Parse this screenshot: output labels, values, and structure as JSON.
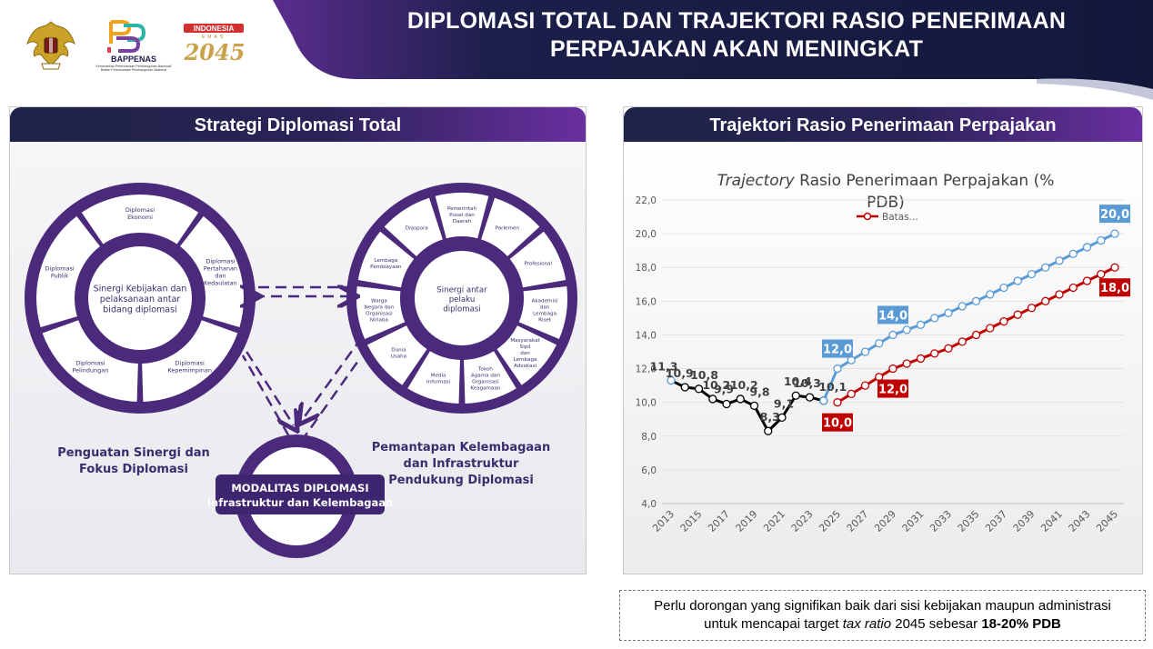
{
  "header": {
    "title_line1": "DIPLOMASI TOTAL DAN TRAJEKTORI RASIO PENERIMAAN",
    "title_line2": "PERPAJAKAN AKAN MENINGKAT",
    "bappenas_label": "BAPPENAS",
    "bappenas_sub1": "Kementerian Perencanaan Pembangunan Nasional/",
    "bappenas_sub2": "Badan Perencanaan Pembangunan Nasional",
    "indonesia_label": "INDONESIA",
    "emas_label": "EMAS",
    "year_label": "2045",
    "colors": {
      "navy": "#13183b",
      "purple": "#5a2a8f"
    }
  },
  "left_panel": {
    "title": "Strategi Diplomasi Total",
    "left_circle": {
      "center": [
        "Sinergi Kebijakan dan",
        "pelaksanaan antar",
        "bidang diplomasi"
      ],
      "segments": [
        [
          "Diplomasi",
          "Ekonomi"
        ],
        [
          "Diplomasi",
          "Pertahanan",
          "dan",
          "Kedaulatan"
        ],
        [
          "Diplomasi",
          "Kepemimpinan"
        ],
        [
          "Diplomasi",
          "Pelindungan"
        ],
        [
          "Diplomasi",
          "Publik"
        ]
      ],
      "caption": [
        "Penguatan Sinergi dan",
        "Fokus Diplomasi"
      ]
    },
    "right_circle": {
      "center": [
        "Sinergi antar",
        "pelaku",
        "diplomasi"
      ],
      "segments": [
        [
          "Pemerintah",
          "Pusat dan",
          "Daerah"
        ],
        [
          "Parlemen"
        ],
        [
          "Profesional"
        ],
        [
          "Akademisi",
          "dan",
          "Lembaga",
          "Riset"
        ],
        [
          "Masyarakat",
          "Sipil",
          "dan",
          "Lembaga",
          "Advokasi"
        ],
        [
          "Tokoh",
          "Agama dan",
          "Organisasi",
          "Keagamaan"
        ],
        [
          "Media",
          "Informasi"
        ],
        [
          "Dunia",
          "Usaha"
        ],
        [
          "Warga",
          "Negara dan",
          "Organisasi",
          "Nirlaba"
        ],
        [
          "Lembaga",
          "Pembiayaan"
        ],
        [
          "Diaspora"
        ]
      ],
      "caption": [
        "Pemantapan Kelembagaan",
        "dan Infrastruktur",
        "Pendukung Diplomasi"
      ]
    },
    "bottom_circle": {
      "label_line1": "MODALITAS DIPLOMASI",
      "label_line2": "Infrastruktur dan Kelembagaan"
    },
    "colors": {
      "ring": "#4b2a7b",
      "segment": "#ffffff",
      "caption": "#3b2c6e"
    }
  },
  "right_panel": {
    "title": "Trajektori Rasio Penerimaan Perpajakan",
    "colors": {
      "history": "#000000",
      "upper": "#5b9bd5",
      "lower": "#c00000"
    }
  },
  "chart_data": {
    "type": "line",
    "title_italic": "Trajectory",
    "title_rest": " Rasio Penerimaan Perpajakan (%",
    "title_line2": "PDB)",
    "legend": "Batas...",
    "ylim": [
      4,
      22
    ],
    "y_ticks": [
      "4,0",
      "6,0",
      "8,0",
      "10,0",
      "12,0",
      "14,0",
      "16,0",
      "18,0",
      "20,0",
      "22,0"
    ],
    "x_ticks": [
      "2013",
      "2015",
      "2017",
      "2019",
      "2021",
      "2023",
      "2025",
      "2027",
      "2029",
      "2031",
      "2033",
      "2035",
      "2037",
      "2039",
      "2041",
      "2043",
      "2045"
    ],
    "series": [
      {
        "key": "history",
        "color": "#000000",
        "x": [
          2014,
          2015,
          2016,
          2017,
          2018,
          2019,
          2020,
          2021,
          2022,
          2023,
          2024
        ],
        "values": [
          10.9,
          10.8,
          10.2,
          9.9,
          10.2,
          9.8,
          8.3,
          9.1,
          10.4,
          10.3,
          10.1
        ]
      },
      {
        "key": "upper",
        "color": "#5b9bd5",
        "x": [
          2024,
          2025,
          2026,
          2027,
          2028,
          2029,
          2030,
          2031,
          2032,
          2033,
          2034,
          2035,
          2036,
          2037,
          2038,
          2039,
          2040,
          2041,
          2042,
          2043,
          2044,
          2045
        ],
        "values": [
          10.1,
          12.0,
          12.5,
          13.0,
          13.5,
          14.0,
          14.3,
          14.6,
          15.0,
          15.3,
          15.7,
          16.0,
          16.4,
          16.8,
          17.2,
          17.6,
          18.0,
          18.4,
          18.8,
          19.2,
          19.6,
          20.0
        ]
      },
      {
        "key": "lower",
        "color": "#c00000",
        "x": [
          2025,
          2026,
          2027,
          2028,
          2029,
          2030,
          2031,
          2032,
          2033,
          2034,
          2035,
          2036,
          2037,
          2038,
          2039,
          2040,
          2041,
          2042,
          2043,
          2044,
          2045
        ],
        "values": [
          10.0,
          10.5,
          11.0,
          11.5,
          12.0,
          12.3,
          12.6,
          12.9,
          13.2,
          13.6,
          14.0,
          14.4,
          14.8,
          15.2,
          15.6,
          16.0,
          16.4,
          16.8,
          17.2,
          17.6,
          18.0
        ]
      }
    ],
    "data_labels": [
      {
        "x": 2013,
        "y": 11.3,
        "text": "11,3",
        "style": "plain"
      },
      {
        "x": 2014,
        "y": 10.9,
        "text": "10,9",
        "style": "plain"
      },
      {
        "x": 2015,
        "y": 10.8,
        "text": "10,8",
        "style": "plain"
      },
      {
        "x": 2017,
        "y": 9.9,
        "text": "9,9",
        "style": "plain"
      },
      {
        "x": 2016,
        "y": 10.2,
        "text": "10,2",
        "style": "plain"
      },
      {
        "x": 2018,
        "y": 10.2,
        "text": "10,2",
        "style": "plain"
      },
      {
        "x": 2019,
        "y": 9.8,
        "text": "9,8",
        "style": "plain"
      },
      {
        "x": 2020,
        "y": 8.3,
        "text": "8,3",
        "style": "plain"
      },
      {
        "x": 2021,
        "y": 9.1,
        "text": "9,1",
        "style": "plain"
      },
      {
        "x": 2022,
        "y": 10.4,
        "text": "10,4",
        "style": "plain"
      },
      {
        "x": 2023,
        "y": 10.3,
        "text": "10,3",
        "style": "plain"
      },
      {
        "x": 2024,
        "y": 10.1,
        "text": "10,1",
        "style": "plain"
      },
      {
        "x": 2025,
        "y": 12.0,
        "text": "12,0",
        "style": "upper"
      },
      {
        "x": 2029,
        "y": 14.0,
        "text": "14,0",
        "style": "upper"
      },
      {
        "x": 2045,
        "y": 20.0,
        "text": "20,0",
        "style": "upper"
      },
      {
        "x": 2025,
        "y": 10.0,
        "text": "10,0",
        "style": "lower"
      },
      {
        "x": 2029,
        "y": 12.0,
        "text": "12,0",
        "style": "lower"
      },
      {
        "x": 2045,
        "y": 18.0,
        "text": "18,0",
        "style": "lower"
      }
    ]
  },
  "note": {
    "line1": "Perlu dorongan yang signifikan baik dari sisi kebijakan maupun administrasi",
    "line2_a": "untuk mencapai target ",
    "line2_italic": "tax ratio",
    "line2_b": " 2045 sebesar ",
    "line2_bold": "18-20% PDB"
  }
}
